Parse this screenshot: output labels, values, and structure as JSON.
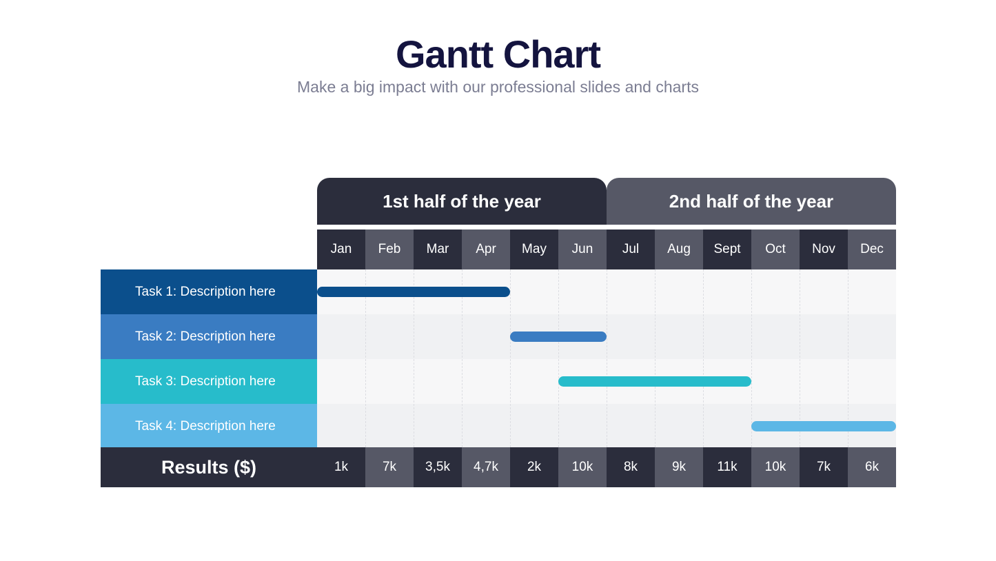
{
  "header": {
    "title": "Gantt Chart",
    "subtitle": "Make a big impact with our professional slides and charts"
  },
  "colors": {
    "dark": "#2b2d3c",
    "mid": "#565866",
    "row_light": "#f7f7f8",
    "row_alt": "#f0f1f3"
  },
  "chart_data": {
    "type": "table",
    "title": "Gantt Chart",
    "subtitle": "Make a big impact with our professional slides and charts",
    "halves": [
      "1st half of the year",
      "2nd half of the year"
    ],
    "months": [
      "Jan",
      "Feb",
      "Mar",
      "Apr",
      "May",
      "Jun",
      "Jul",
      "Aug",
      "Sept",
      "Oct",
      "Nov",
      "Dec"
    ],
    "tasks": [
      {
        "label": "Task 1: Description here",
        "start_month": 0,
        "end_month": 4,
        "color": "#0b4f8c"
      },
      {
        "label": "Task 2: Description here",
        "start_month": 4,
        "end_month": 6,
        "color": "#3a7cc2"
      },
      {
        "label": "Task 3: Description here",
        "start_month": 5,
        "end_month": 9,
        "color": "#27bccb"
      },
      {
        "label": "Task 4: Description here",
        "start_month": 9,
        "end_month": 12,
        "color": "#5cb7e6"
      }
    ],
    "results_label": "Results ($)",
    "results": [
      "1k",
      "7k",
      "3,5k",
      "4,7k",
      "2k",
      "10k",
      "8k",
      "9k",
      "11k",
      "10k",
      "7k",
      "6k"
    ]
  }
}
